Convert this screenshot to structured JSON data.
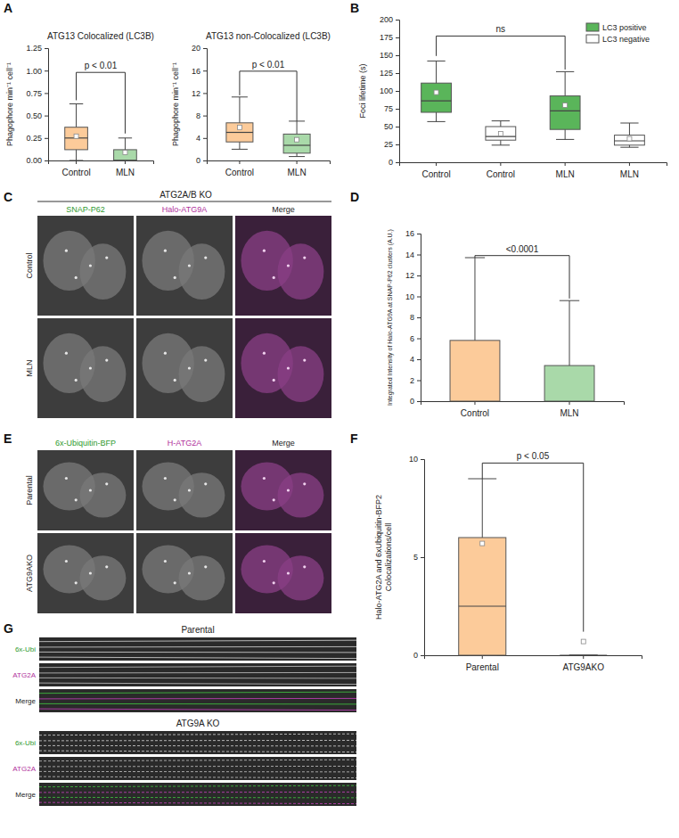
{
  "panel_labels": [
    "A",
    "B",
    "C",
    "D",
    "E",
    "F",
    "G"
  ],
  "chart_data": [
    {
      "type": "box",
      "title": "ATG13 Colocalized (LC3B)",
      "y_label": "Phagophore min⁻¹ cell⁻¹",
      "categories": [
        "Control",
        "MLN"
      ],
      "ylim": [
        0,
        1.25
      ],
      "yticks": [
        {
          "value": 0,
          "label": "0.00"
        },
        {
          "value": 0.25,
          "label": "0.25"
        },
        {
          "value": 0.5,
          "label": "0.50"
        },
        {
          "value": 0.75,
          "label": "0.75"
        },
        {
          "value": 1,
          "label": "1.00"
        },
        {
          "value": 1.25,
          "label": "1.25"
        }
      ],
      "series": [
        {
          "colors": [
            "#fccb9a",
            "#a9d9a9"
          ],
          "min": [
            0,
            0
          ],
          "q1": [
            0.12,
            0
          ],
          "median": [
            0.25,
            0
          ],
          "q3": [
            0.37,
            0.12
          ],
          "max": [
            0.63,
            0.25
          ],
          "mean": [
            0.27,
            0.09
          ]
        }
      ],
      "annotations": [
        {
          "text": "p < 0.01",
          "from": 0,
          "to": 1,
          "y": 0.98,
          "y_from": 0.67,
          "y_to": 0.3
        }
      ]
    },
    {
      "type": "box",
      "title": "ATG13 non-Colocalized (LC3B)",
      "y_label": "Phagophore min⁻¹ cell⁻¹",
      "categories": [
        "Control",
        "MLN"
      ],
      "ylim": [
        0,
        20
      ],
      "yticks": [
        0,
        4,
        8,
        12,
        16,
        20
      ],
      "series": [
        {
          "colors": [
            "#fccb9a",
            "#a9d9a9"
          ],
          "min": [
            2,
            0.7
          ],
          "q1": [
            3.3,
            1.3
          ],
          "median": [
            5,
            2.7
          ],
          "q3": [
            6.7,
            4.7
          ],
          "max": [
            11.3,
            7
          ],
          "mean": [
            5.9,
            3.7
          ]
        }
      ],
      "annotations": [
        {
          "text": "p < 0.01",
          "from": 0,
          "to": 1,
          "y": 15.9,
          "y_from": 11.6,
          "y_to": 7
        }
      ]
    },
    {
      "type": "box",
      "y_label": "Foci lifetime (s)",
      "categories": [
        "Control",
        "Control",
        "MLN",
        "MLN"
      ],
      "ylim": [
        0,
        200
      ],
      "yticks": [
        0,
        25,
        50,
        75,
        100,
        125,
        150,
        175,
        200
      ],
      "legend": "upper right",
      "series": [
        {
          "name": "LC3 positive",
          "color": "#5ab55a",
          "min": [
            57,
            null,
            32,
            null
          ],
          "q1": [
            70,
            null,
            46,
            null
          ],
          "median": [
            86,
            null,
            72,
            null
          ],
          "q3": [
            111,
            null,
            93,
            null
          ],
          "max": [
            142,
            null,
            127,
            null
          ],
          "mean": [
            98,
            null,
            80,
            null
          ]
        },
        {
          "name": "LC3 negative",
          "color": "#ffffff",
          "min": [
            null,
            24,
            null,
            21
          ],
          "q1": [
            null,
            31,
            null,
            24
          ],
          "median": [
            null,
            36,
            null,
            30
          ],
          "q3": [
            null,
            50,
            null,
            38
          ],
          "max": [
            null,
            58,
            null,
            55
          ],
          "mean": [
            null,
            40,
            null,
            33
          ]
        }
      ],
      "annotations": [
        {
          "text": "ns",
          "from": 0,
          "to": 2,
          "y": 177,
          "y_from": 149,
          "y_to": 130
        }
      ]
    },
    {
      "type": "bar",
      "y_label": "Integrated Intensity of Halo-ATG9A at SNAP-P62 clusters (A.U.)",
      "categories": [
        "Control",
        "MLN"
      ],
      "values": [
        5.8,
        3.4
      ],
      "errors": [
        7.9,
        6.2
      ],
      "colors": [
        "#fccb9a",
        "#a9d9a9"
      ],
      "ylim": [
        0,
        16
      ],
      "yticks": [
        0,
        2,
        4,
        6,
        8,
        10,
        12,
        14,
        16
      ],
      "annotations": [
        {
          "text": "<0.0001",
          "from": 0,
          "to": 1,
          "y": 13.9,
          "y_from": 13.7,
          "y_to": 9.8
        }
      ]
    },
    {
      "type": "box",
      "y_label": [
        "Halo-ATG2A and 6xUbiquitin-BFP2",
        "Colocalizations/cell"
      ],
      "categories": [
        "Parental",
        "ATG9AKO"
      ],
      "ylim": [
        0,
        10
      ],
      "yticks": [
        0,
        5,
        10
      ],
      "series": [
        {
          "colors": [
            "#fccb9a",
            "#a9d9a9"
          ],
          "min": [
            0,
            0
          ],
          "q1": [
            0,
            0
          ],
          "median": [
            2.5,
            0
          ],
          "q3": [
            6,
            0
          ],
          "max": [
            9,
            0
          ],
          "mean": [
            5.7,
            0.7
          ]
        }
      ],
      "annotations": [
        {
          "text": "p < 0.05",
          "from": 0,
          "to": 1,
          "y": 9.8,
          "y_from": 9,
          "y_to": 1.2
        }
      ]
    }
  ],
  "image_panels": [
    {
      "title": "ATG2A/B KO",
      "columns": [
        "SNAP-P62",
        "Halo-ATG9A",
        "Merge"
      ],
      "rows": [
        "Control",
        "MLN"
      ]
    },
    {
      "columns": [
        "6x-Ubiquitin-BFP",
        "H-ATG2A",
        "Merge"
      ],
      "rows": [
        "Parental",
        "ATG9AKO"
      ]
    },
    {
      "groups": [
        {
          "title": "Parental",
          "rows": [
            "6x-Ubi",
            "ATG2A",
            "Merge"
          ]
        },
        {
          "title": "ATG9A KO",
          "rows": [
            "6x-Ubi",
            "ATG2A",
            "Merge"
          ]
        }
      ]
    }
  ]
}
